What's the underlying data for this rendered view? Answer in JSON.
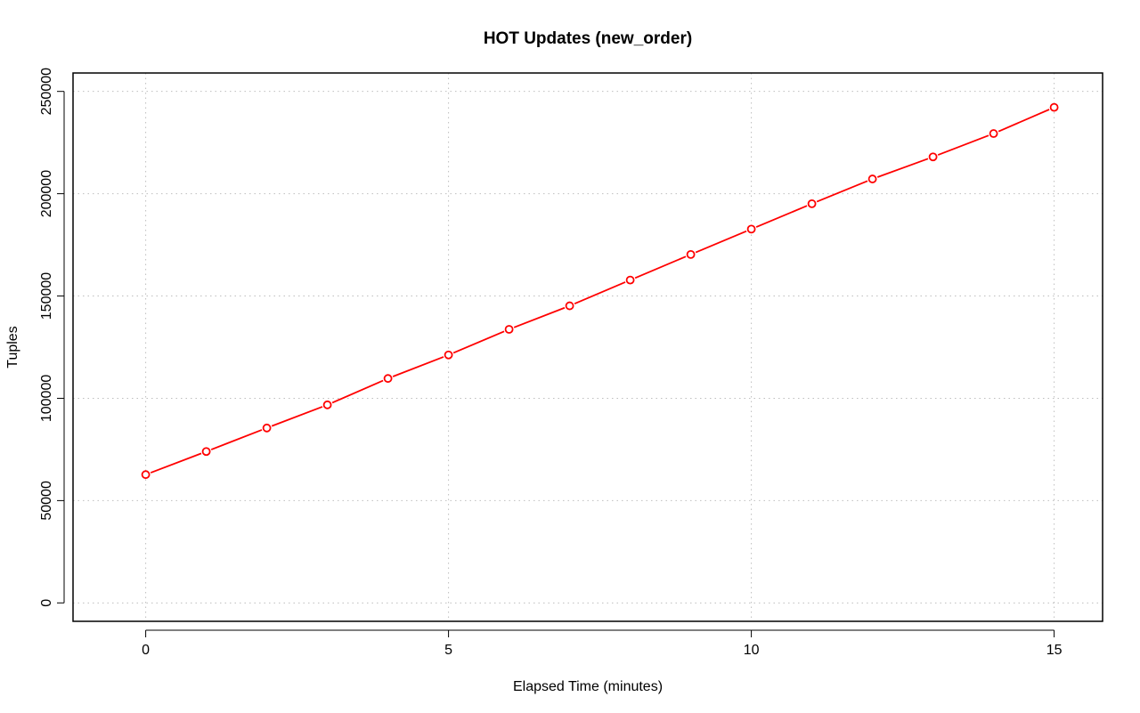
{
  "chart_data": {
    "type": "line",
    "title": "HOT Updates (new_order)",
    "xlabel": "Elapsed Time (minutes)",
    "ylabel": "Tuples",
    "xlim": [
      -1.2,
      15.8
    ],
    "ylim": [
      -9000,
      259000
    ],
    "x_ticks": [
      0,
      5,
      10,
      15
    ],
    "y_ticks": [
      0,
      50000,
      100000,
      150000,
      200000,
      250000
    ],
    "grid": true,
    "series": [
      {
        "color": "#ff0000",
        "marker": "open-circle",
        "x": [
          0,
          1,
          2,
          3,
          4,
          5,
          6,
          7,
          8,
          9,
          10,
          11,
          12,
          13,
          14,
          15
        ],
        "values": [
          62700,
          74000,
          85500,
          96800,
          109700,
          121200,
          133700,
          145200,
          157800,
          170300,
          182700,
          195100,
          207200,
          218000,
          229400,
          242200
        ]
      }
    ]
  }
}
